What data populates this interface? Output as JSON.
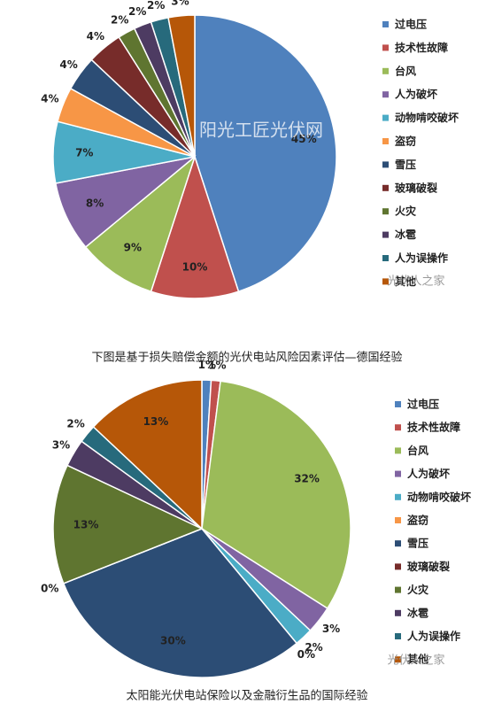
{
  "chart_data": [
    {
      "type": "pie",
      "title": "下图是基于损失赔偿金额的光伏电站风险因素评估—德国经验",
      "watermarks": [
        "阳光工匠光伏网",
        "光伏人之家"
      ],
      "categories": [
        "过电压",
        "技术性故障",
        "台风",
        "人为破坏",
        "动物啃咬破坏",
        "盗窃",
        "雪压",
        "玻璃破裂",
        "火灾",
        "冰雹",
        "人为误操作",
        "其他"
      ],
      "values": [
        45,
        10,
        9,
        8,
        7,
        4,
        4,
        4,
        2,
        2,
        2,
        3
      ],
      "value_labels": [
        "45%",
        "10%",
        "9%",
        "8%",
        "7%",
        "4%",
        "4%",
        "4%",
        "2%",
        "2%",
        "2%",
        "3%"
      ],
      "colors": [
        "#4f81bd",
        "#c0504d",
        "#9bbb59",
        "#8064a2",
        "#4bacc6",
        "#f79646",
        "#2c4d75",
        "#772c2a",
        "#5f7530",
        "#4d3b62",
        "#276a7c",
        "#b65708"
      ]
    },
    {
      "type": "pie",
      "title": "太阳能光伏电站保险以及金融衍生品的国际经验",
      "watermarks": [
        "光伏人之家"
      ],
      "categories": [
        "过电压",
        "技术性故障",
        "台风",
        "人为破坏",
        "动物啃咬破坏",
        "盗窃",
        "雪压",
        "玻璃破裂",
        "火灾",
        "冰雹",
        "人为误操作",
        "其他"
      ],
      "values": [
        1,
        1,
        32,
        3,
        2,
        0,
        30,
        0,
        13,
        3,
        2,
        13
      ],
      "value_labels": [
        "1%",
        "1%",
        "32%",
        "3%",
        "2%",
        "0%",
        "30%",
        "0%",
        "13%",
        "3%",
        "2%",
        "13%"
      ],
      "colors": [
        "#4f81bd",
        "#c0504d",
        "#9bbb59",
        "#8064a2",
        "#4bacc6",
        "#f79646",
        "#2c4d75",
        "#772c2a",
        "#5f7530",
        "#4d3b62",
        "#276a7c",
        "#b65708"
      ]
    }
  ]
}
